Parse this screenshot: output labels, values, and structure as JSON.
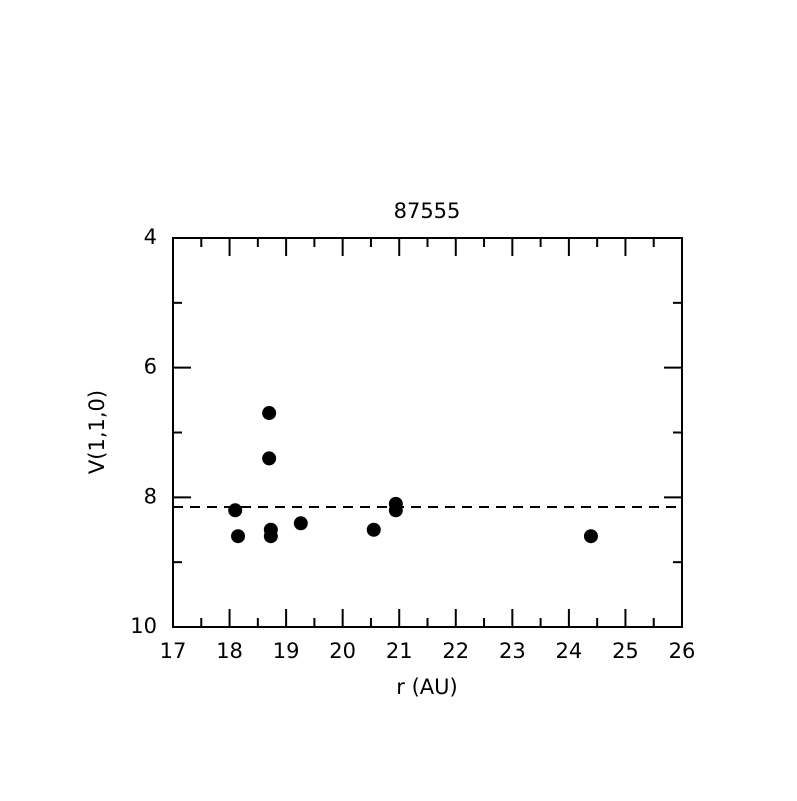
{
  "chart_data": {
    "type": "scatter",
    "title": "87555",
    "xlabel": "r (AU)",
    "ylabel": "V(1,1,0)",
    "x": [
      18.1,
      18.15,
      18.7,
      18.7,
      18.73,
      18.73,
      19.26,
      20.55,
      20.94,
      20.94,
      24.39
    ],
    "values": [
      8.2,
      8.6,
      6.7,
      7.4,
      8.5,
      8.6,
      8.4,
      8.5,
      8.1,
      8.2,
      8.6
    ],
    "color": "#000000",
    "xlim": [
      17,
      26
    ],
    "xticks": [
      17,
      18,
      19,
      20,
      21,
      22,
      23,
      24,
      25,
      26
    ],
    "xminor_ticks": [
      17.5,
      18.5,
      19.5,
      20.5,
      21.5,
      22.5,
      23.5,
      24.5,
      25.5
    ],
    "ylim": [
      4,
      10
    ],
    "yticks": [
      4,
      6,
      8,
      10
    ],
    "yminor_ticks": [
      5,
      7,
      9
    ],
    "y_inverted": true,
    "hline": 8.15
  }
}
